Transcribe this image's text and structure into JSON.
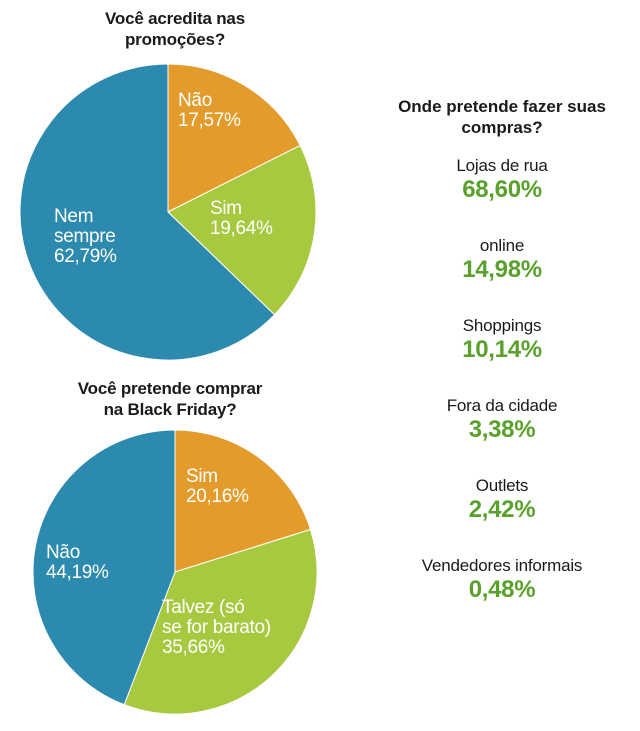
{
  "chart_data": [
    {
      "type": "pie",
      "title_lines": [
        "Você acredita nas",
        "promoções?"
      ],
      "slices": [
        {
          "label_lines": [
            "Não",
            "17,57%"
          ],
          "value": 17.57,
          "color": "#e39b2b"
        },
        {
          "label_lines": [
            "Sim",
            "19,64%"
          ],
          "value": 19.64,
          "color": "#a7c940"
        },
        {
          "label_lines": [
            "Nem",
            "sempre",
            "62,79%"
          ],
          "value": 62.79,
          "color": "#2b8aae"
        }
      ]
    },
    {
      "type": "pie",
      "title_lines": [
        "Você pretende comprar",
        "na Black Friday?"
      ],
      "slices": [
        {
          "label_lines": [
            "Sim",
            "20,16%"
          ],
          "value": 20.16,
          "color": "#e39b2b"
        },
        {
          "label_lines": [
            "Talvez (só",
            "se for barato)",
            "35,66%"
          ],
          "value": 35.66,
          "color": "#a7c940"
        },
        {
          "label_lines": [
            "Não",
            "44,19%"
          ],
          "value": 44.19,
          "color": "#2b8aae"
        }
      ]
    },
    {
      "type": "table",
      "title_lines": [
        "Onde pretende fazer suas",
        "compras?"
      ],
      "rows": [
        {
          "label": "Lojas de rua",
          "value": "68,60%"
        },
        {
          "label": "online",
          "value": "14,98%"
        },
        {
          "label": "Shoppings",
          "value": "10,14%"
        },
        {
          "label": "Fora da cidade",
          "value": "3,38%"
        },
        {
          "label": "Outlets",
          "value": "2,42%"
        },
        {
          "label": "Vendedores informais",
          "value": "0,48%"
        }
      ]
    }
  ],
  "colors": {
    "value_green": "#5aa02c"
  }
}
